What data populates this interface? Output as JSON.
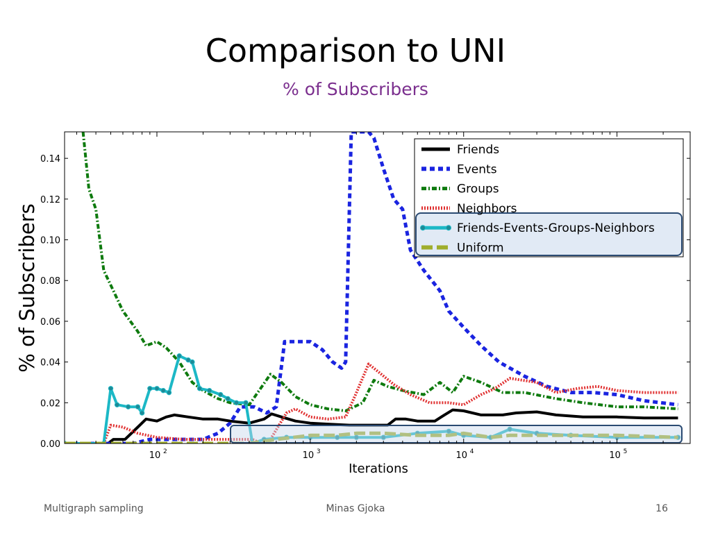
{
  "slide": {
    "title": "Comparison to UNI",
    "subtitle": "% of Subscribers",
    "footer_left": "Multigraph sampling",
    "footer_center": "Minas Gjoka",
    "page_number": "16"
  },
  "chart_data": {
    "type": "line",
    "xlabel": "Iterations",
    "ylabel": "% of Subscribers",
    "xscale": "log",
    "xlim": [
      25,
      300000
    ],
    "ylim": [
      0,
      0.153
    ],
    "xticks": [
      {
        "value": 100,
        "label": "10",
        "exp": "2"
      },
      {
        "value": 1000,
        "label": "10",
        "exp": "3"
      },
      {
        "value": 10000,
        "label": "10",
        "exp": "4"
      },
      {
        "value": 100000,
        "label": "10",
        "exp": "5"
      }
    ],
    "yticks": [
      {
        "value": 0.0,
        "label": "0.00"
      },
      {
        "value": 0.02,
        "label": "0.02"
      },
      {
        "value": 0.04,
        "label": "0.04"
      },
      {
        "value": 0.06,
        "label": "0.06"
      },
      {
        "value": 0.08,
        "label": "0.08"
      },
      {
        "value": 0.1,
        "label": "0.10"
      },
      {
        "value": 0.12,
        "label": "0.12"
      },
      {
        "value": 0.14,
        "label": "0.14"
      }
    ],
    "legend_position": "top-right",
    "series": [
      {
        "name": "Friends",
        "color": "#000000",
        "style": "solid",
        "points": [
          [
            25,
            0
          ],
          [
            48,
            0
          ],
          [
            52,
            0.002
          ],
          [
            62,
            0.002
          ],
          [
            75,
            0.008
          ],
          [
            85,
            0.012
          ],
          [
            100,
            0.011
          ],
          [
            115,
            0.013
          ],
          [
            130,
            0.014
          ],
          [
            160,
            0.013
          ],
          [
            200,
            0.012
          ],
          [
            250,
            0.012
          ],
          [
            300,
            0.011
          ],
          [
            400,
            0.01
          ],
          [
            500,
            0.012
          ],
          [
            560,
            0.0145
          ],
          [
            650,
            0.013
          ],
          [
            800,
            0.011
          ],
          [
            1000,
            0.01
          ],
          [
            1300,
            0.0095
          ],
          [
            1800,
            0.009
          ],
          [
            2500,
            0.009
          ],
          [
            3200,
            0.009
          ],
          [
            3600,
            0.012
          ],
          [
            4200,
            0.012
          ],
          [
            5000,
            0.011
          ],
          [
            6500,
            0.011
          ],
          [
            7500,
            0.014
          ],
          [
            8500,
            0.0165
          ],
          [
            10000,
            0.016
          ],
          [
            13000,
            0.014
          ],
          [
            18000,
            0.014
          ],
          [
            22000,
            0.015
          ],
          [
            30000,
            0.0155
          ],
          [
            40000,
            0.014
          ],
          [
            60000,
            0.013
          ],
          [
            100000,
            0.013
          ],
          [
            150000,
            0.0125
          ],
          [
            250000,
            0.0125
          ]
        ]
      },
      {
        "name": "Events",
        "color": "#1a24e0",
        "style": "dashed",
        "points": [
          [
            25,
            0
          ],
          [
            70,
            0
          ],
          [
            90,
            0.002
          ],
          [
            150,
            0.002
          ],
          [
            200,
            0.002
          ],
          [
            250,
            0.005
          ],
          [
            300,
            0.01
          ],
          [
            350,
            0.018
          ],
          [
            430,
            0.018
          ],
          [
            520,
            0.015
          ],
          [
            600,
            0.018
          ],
          [
            680,
            0.05
          ],
          [
            800,
            0.05
          ],
          [
            1000,
            0.05
          ],
          [
            1200,
            0.046
          ],
          [
            1400,
            0.04
          ],
          [
            1600,
            0.037
          ],
          [
            1700,
            0.04
          ],
          [
            1850,
            0.153
          ],
          [
            2400,
            0.153
          ],
          [
            2600,
            0.15
          ],
          [
            3000,
            0.135
          ],
          [
            3500,
            0.12
          ],
          [
            4000,
            0.115
          ],
          [
            4500,
            0.095
          ],
          [
            5500,
            0.085
          ],
          [
            7000,
            0.075
          ],
          [
            8000,
            0.065
          ],
          [
            10000,
            0.057
          ],
          [
            13000,
            0.048
          ],
          [
            17000,
            0.04
          ],
          [
            25000,
            0.033
          ],
          [
            35000,
            0.028
          ],
          [
            50000,
            0.025
          ],
          [
            70000,
            0.025
          ],
          [
            100000,
            0.024
          ],
          [
            150000,
            0.021
          ],
          [
            250000,
            0.019
          ]
        ]
      },
      {
        "name": "Groups",
        "color": "#0e7a0e",
        "style": "dashdot",
        "points": [
          [
            33,
            0.153
          ],
          [
            36,
            0.125
          ],
          [
            40,
            0.115
          ],
          [
            45,
            0.085
          ],
          [
            52,
            0.075
          ],
          [
            60,
            0.065
          ],
          [
            75,
            0.055
          ],
          [
            85,
            0.048
          ],
          [
            100,
            0.05
          ],
          [
            115,
            0.047
          ],
          [
            140,
            0.04
          ],
          [
            170,
            0.03
          ],
          [
            200,
            0.026
          ],
          [
            250,
            0.022
          ],
          [
            300,
            0.02
          ],
          [
            400,
            0.019
          ],
          [
            550,
            0.034
          ],
          [
            650,
            0.03
          ],
          [
            800,
            0.023
          ],
          [
            1000,
            0.019
          ],
          [
            1300,
            0.017
          ],
          [
            1700,
            0.016
          ],
          [
            2200,
            0.02
          ],
          [
            2600,
            0.031
          ],
          [
            3200,
            0.028
          ],
          [
            4000,
            0.026
          ],
          [
            5500,
            0.024
          ],
          [
            7000,
            0.03
          ],
          [
            8500,
            0.025
          ],
          [
            10000,
            0.033
          ],
          [
            13000,
            0.03
          ],
          [
            18000,
            0.025
          ],
          [
            25000,
            0.025
          ],
          [
            40000,
            0.022
          ],
          [
            60000,
            0.02
          ],
          [
            100000,
            0.018
          ],
          [
            150000,
            0.018
          ],
          [
            250000,
            0.017
          ]
        ]
      },
      {
        "name": "Neighbors",
        "color": "#e03030",
        "style": "dotted",
        "points": [
          [
            25,
            0
          ],
          [
            45,
            0
          ],
          [
            50,
            0.009
          ],
          [
            60,
            0.008
          ],
          [
            75,
            0.005
          ],
          [
            100,
            0.003
          ],
          [
            150,
            0.002
          ],
          [
            200,
            0.002
          ],
          [
            300,
            0.002
          ],
          [
            420,
            0.002
          ],
          [
            480,
            0.0
          ],
          [
            550,
            0.002
          ],
          [
            700,
            0.015
          ],
          [
            800,
            0.017
          ],
          [
            1000,
            0.013
          ],
          [
            1300,
            0.012
          ],
          [
            1700,
            0.013
          ],
          [
            2000,
            0.025
          ],
          [
            2400,
            0.039
          ],
          [
            2800,
            0.035
          ],
          [
            3500,
            0.029
          ],
          [
            4500,
            0.024
          ],
          [
            6000,
            0.02
          ],
          [
            8000,
            0.02
          ],
          [
            10000,
            0.019
          ],
          [
            13000,
            0.024
          ],
          [
            16000,
            0.027
          ],
          [
            20000,
            0.032
          ],
          [
            30000,
            0.03
          ],
          [
            40000,
            0.025
          ],
          [
            55000,
            0.027
          ],
          [
            75000,
            0.028
          ],
          [
            100000,
            0.026
          ],
          [
            150000,
            0.025
          ],
          [
            250000,
            0.025
          ]
        ]
      },
      {
        "name": "Friends-Events-Groups-Neighbors",
        "color": "#1cb8c6",
        "style": "solid-markers",
        "points": [
          [
            25,
            0
          ],
          [
            45,
            0
          ],
          [
            50,
            0.027
          ],
          [
            55,
            0.019
          ],
          [
            65,
            0.018
          ],
          [
            75,
            0.018
          ],
          [
            80,
            0.015
          ],
          [
            90,
            0.027
          ],
          [
            100,
            0.027
          ],
          [
            110,
            0.026
          ],
          [
            120,
            0.025
          ],
          [
            140,
            0.043
          ],
          [
            160,
            0.041
          ],
          [
            170,
            0.04
          ],
          [
            190,
            0.027
          ],
          [
            220,
            0.026
          ],
          [
            260,
            0.024
          ],
          [
            290,
            0.022
          ],
          [
            330,
            0.02
          ],
          [
            380,
            0.02
          ],
          [
            420,
            0.0
          ],
          [
            500,
            0.002
          ],
          [
            700,
            0.003
          ],
          [
            1000,
            0.003
          ],
          [
            1500,
            0.003
          ],
          [
            2000,
            0.003
          ],
          [
            3000,
            0.003
          ],
          [
            5000,
            0.005
          ],
          [
            8000,
            0.006
          ],
          [
            10000,
            0.004
          ],
          [
            15000,
            0.003
          ],
          [
            20000,
            0.007
          ],
          [
            30000,
            0.005
          ],
          [
            50000,
            0.004
          ],
          [
            100000,
            0.003
          ],
          [
            250000,
            0.003
          ]
        ]
      },
      {
        "name": "Uniform",
        "color": "#9fae2c",
        "style": "longdash",
        "points": [
          [
            25,
            0
          ],
          [
            400,
            0
          ],
          [
            600,
            0.002
          ],
          [
            1000,
            0.004
          ],
          [
            1500,
            0.004
          ],
          [
            2000,
            0.005
          ],
          [
            3000,
            0.005
          ],
          [
            5000,
            0.004
          ],
          [
            8000,
            0.004
          ],
          [
            10000,
            0.005
          ],
          [
            15000,
            0.003
          ],
          [
            20000,
            0.004
          ],
          [
            30000,
            0.004
          ],
          [
            50000,
            0.004
          ],
          [
            100000,
            0.004
          ],
          [
            250000,
            0.003
          ]
        ]
      }
    ]
  }
}
